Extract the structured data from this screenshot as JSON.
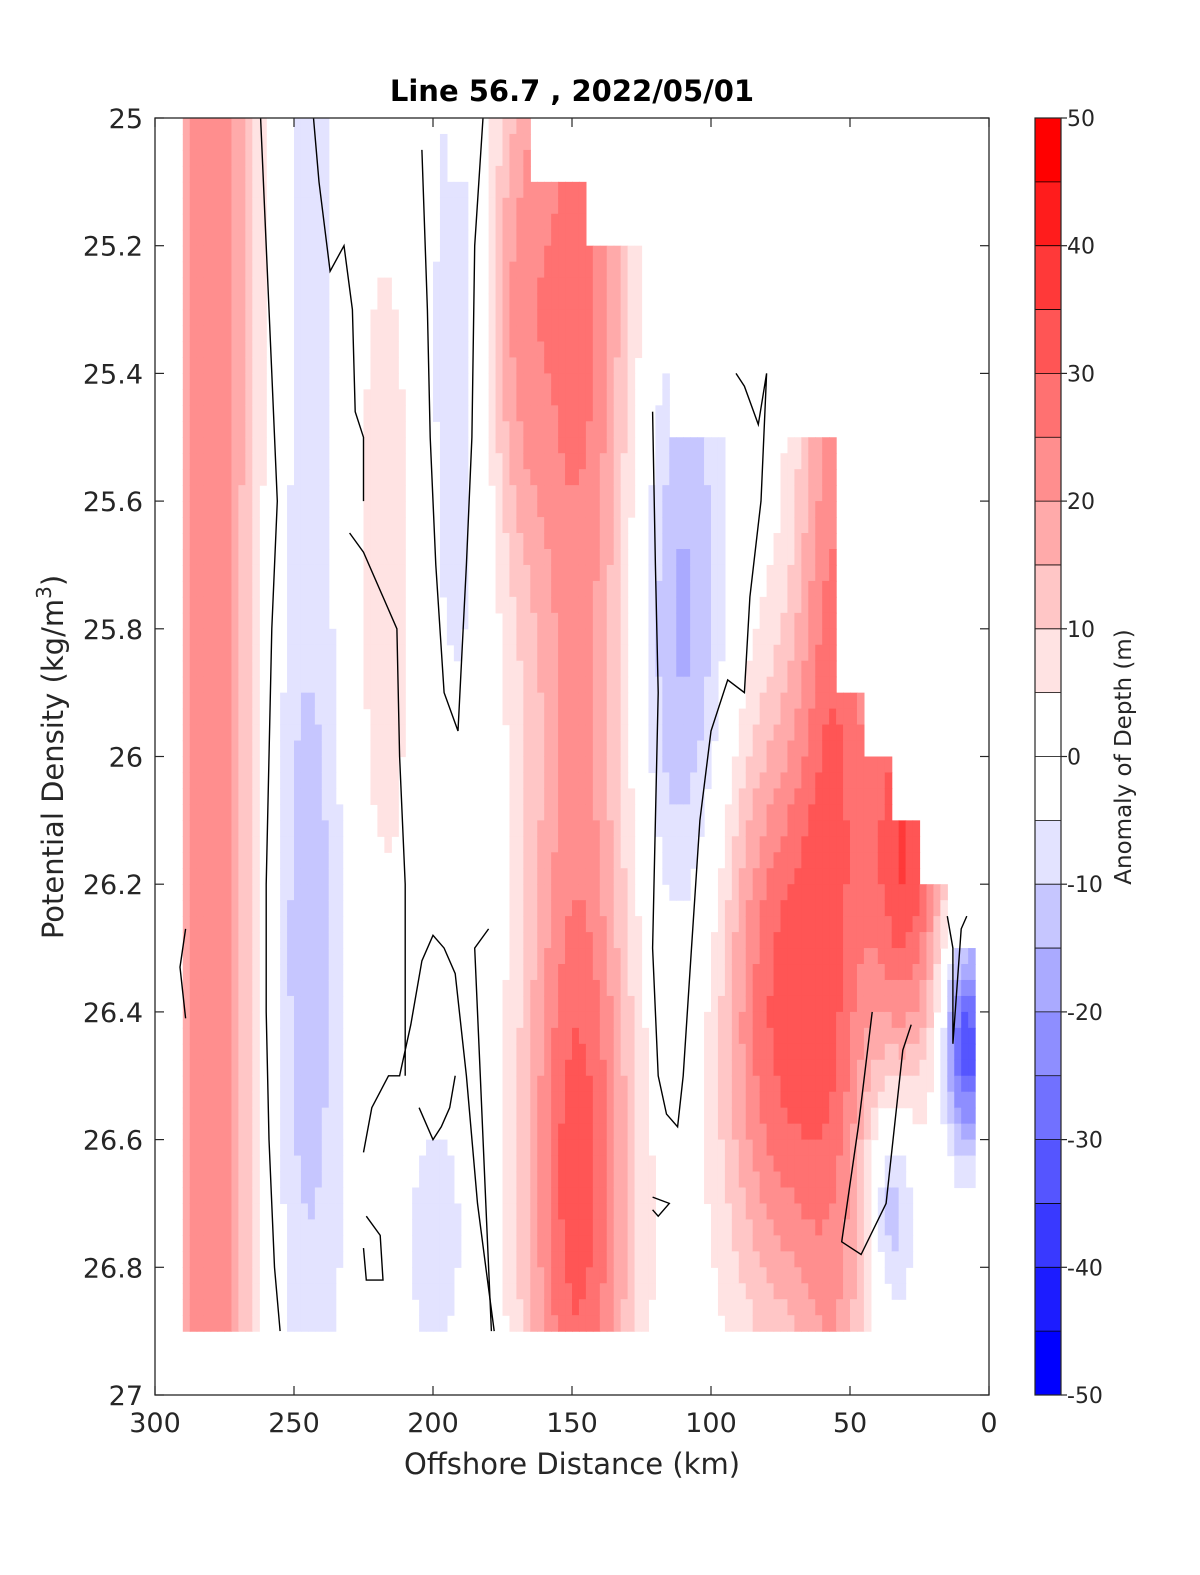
{
  "chart_data": {
    "type": "heatmap",
    "title": "Line 56.7 , 2022/05/01",
    "xlabel": "Offshore Distance (km)",
    "ylabel_main": "Potential Density (kg/m",
    "ylabel_sup": "3",
    "ylabel_close": ")",
    "colorbar_label": "Anomaly of Depth (m)",
    "xlim": [
      300,
      0
    ],
    "ylim": [
      25,
      27
    ],
    "x_reversed": true,
    "y_reversed": true,
    "x_ticks": [
      300,
      250,
      200,
      150,
      100,
      50,
      0
    ],
    "y_ticks": [
      25,
      25.2,
      25.4,
      25.6,
      25.8,
      26,
      26.2,
      26.4,
      26.6,
      26.8,
      27
    ],
    "y_tick_labels": [
      "25",
      "25.2",
      "25.4",
      "25.6",
      "25.8",
      "26",
      "26.2",
      "26.4",
      "26.6",
      "26.8",
      "27"
    ],
    "colorbar_ticks": [
      50,
      40,
      30,
      20,
      10,
      0,
      -10,
      -20,
      -30,
      -40,
      -50
    ],
    "color_levels": [
      -50,
      -45,
      -40,
      -35,
      -30,
      -25,
      -20,
      -15,
      -10,
      -5,
      0,
      5,
      10,
      15,
      20,
      25,
      30,
      35,
      40,
      45,
      50
    ],
    "colors": {
      "neg_extreme": "#0000ff",
      "zero": "#ffffff",
      "pos_extreme": "#ff0000",
      "contour_line": "#000000"
    },
    "data_extent_x": [
      290,
      5
    ],
    "data_extent_y": [
      25,
      26.9
    ],
    "x": [
      290,
      280,
      270,
      260,
      250,
      240,
      230,
      220,
      210,
      200,
      190,
      180,
      170,
      160,
      150,
      140,
      130,
      120,
      110,
      100,
      90,
      80,
      70,
      60,
      50,
      40,
      30,
      20,
      10
    ],
    "y": [
      25,
      25.1,
      25.2,
      25.3,
      25.4,
      25.5,
      25.6,
      25.7,
      25.8,
      25.9,
      26,
      26.1,
      26.2,
      26.3,
      26.4,
      26.5,
      26.6,
      26.7,
      26.8,
      26.9
    ],
    "valid_from_y": [
      25,
      25,
      25,
      25,
      25,
      25,
      25,
      25,
      25,
      25,
      25.1,
      25,
      25,
      25.1,
      25.1,
      25.2,
      25.2,
      25.4,
      25.5,
      25.5,
      25.4,
      25.5,
      25.5,
      25.5,
      25.9,
      26.0,
      26.1,
      26.2,
      26.3
    ],
    "anomaly_description": "Depth anomaly (m) by offshore distance and potential density; contour interval 5 m, black line marks zero anomaly."
  }
}
